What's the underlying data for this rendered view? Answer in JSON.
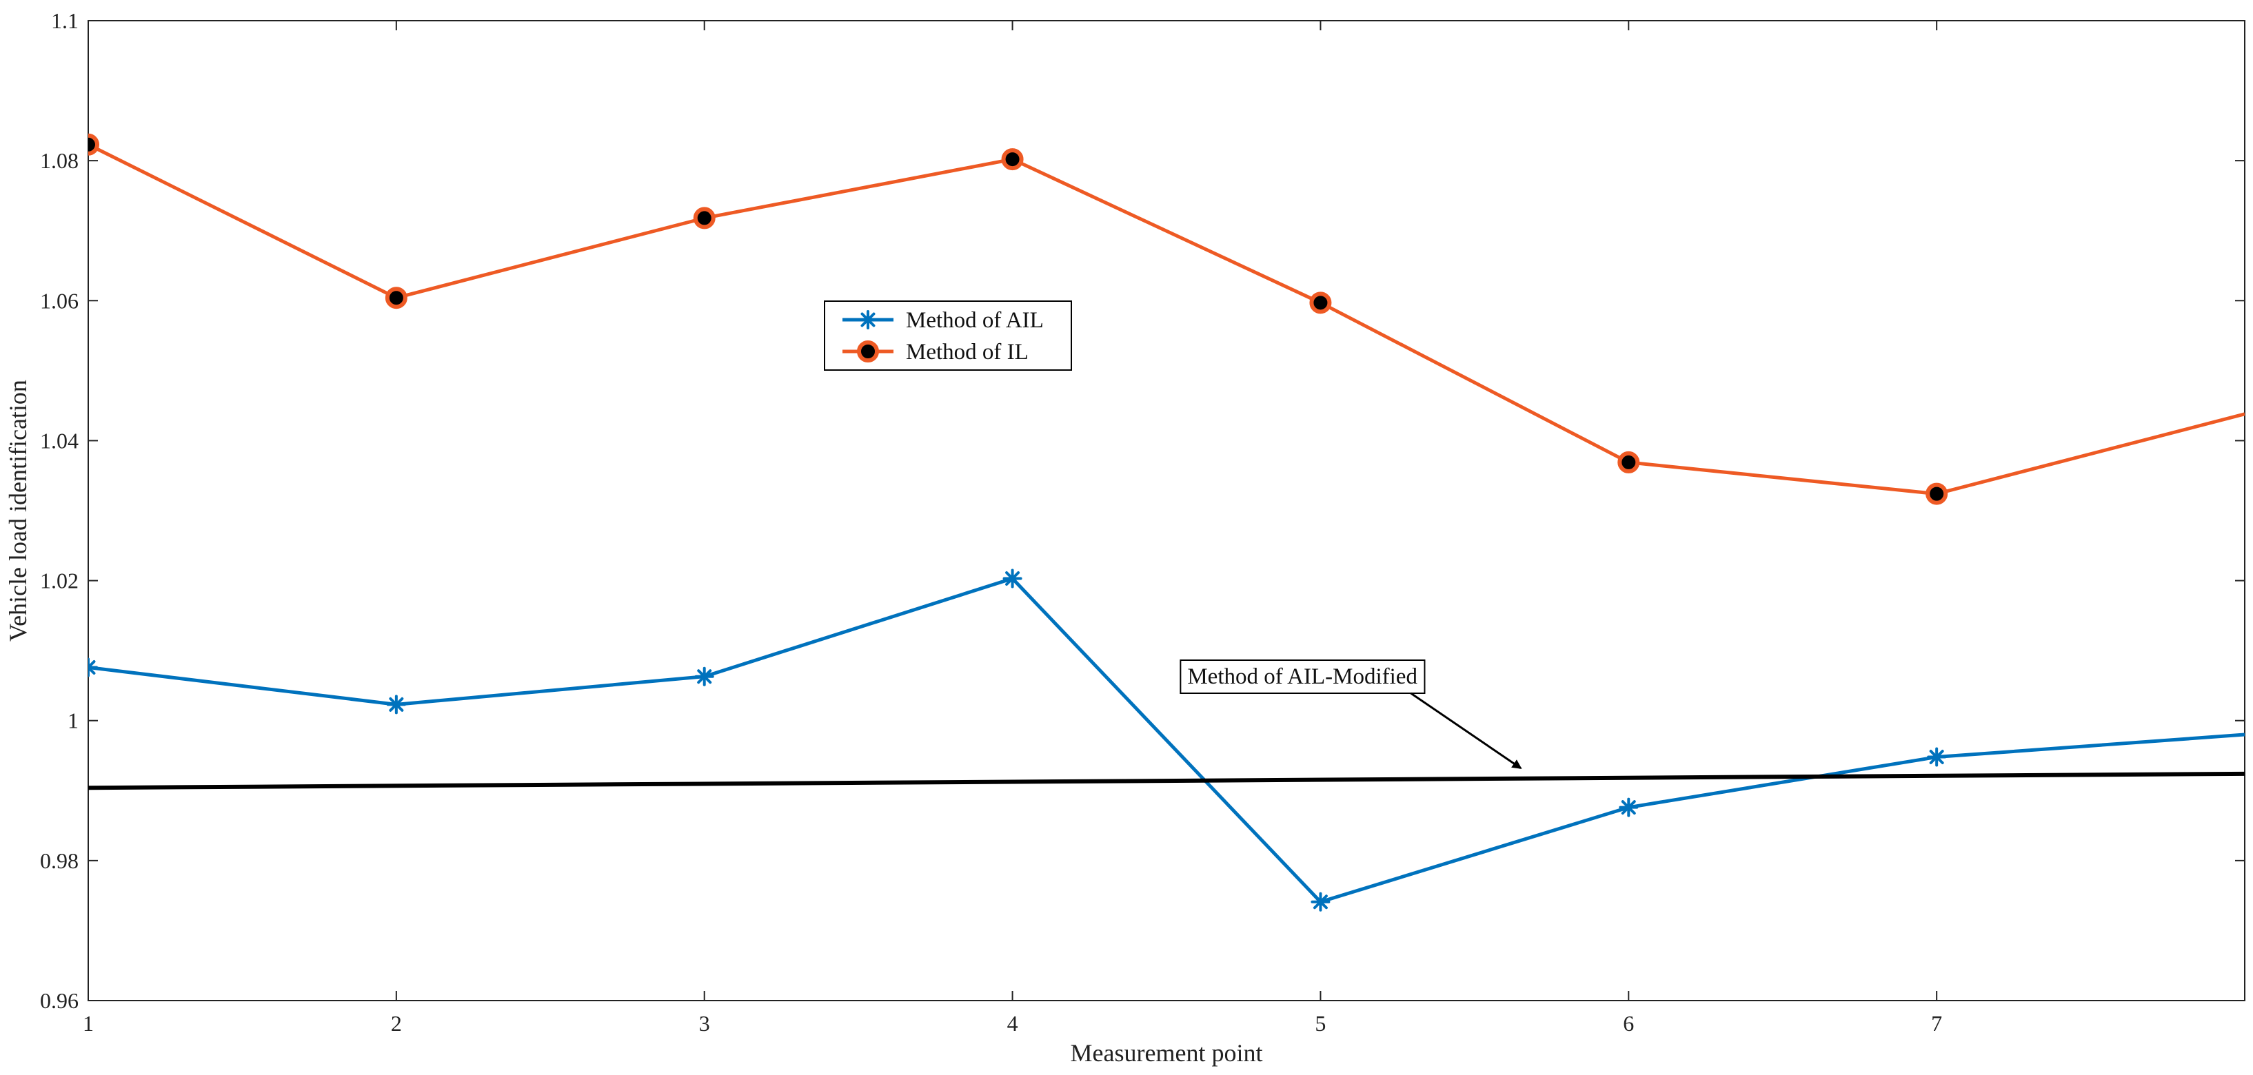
{
  "chart_data": {
    "type": "line",
    "title": "",
    "xlabel": "Measurement point",
    "ylabel": "Vehicle load identification",
    "xlim": [
      1,
      8
    ],
    "ylim": [
      0.96,
      1.1
    ],
    "x_ticks": [
      1,
      2,
      3,
      4,
      5,
      6,
      7
    ],
    "x_tick_labels": [
      "1",
      "2",
      "3",
      "4",
      "5",
      "6",
      "7"
    ],
    "y_ticks": [
      0.96,
      0.98,
      1.0,
      1.02,
      1.04,
      1.06,
      1.08,
      1.1
    ],
    "y_tick_labels": [
      "0.96",
      "0.98",
      "1",
      "1.02",
      "1.04",
      "1.06",
      "1.08",
      "1.1"
    ],
    "grid": false,
    "legend_position": "upper-center",
    "series": [
      {
        "name": "Method of AIL",
        "color": "#0072BD",
        "marker": "asterisk",
        "x": [
          1,
          2,
          3,
          4,
          5,
          6,
          7,
          8
        ],
        "y": [
          1.0076,
          1.0023,
          1.0063,
          1.0203,
          0.9741,
          0.9876,
          0.9948,
          0.998
        ]
      },
      {
        "name": "Method of IL",
        "color": "#EE5A24",
        "marker": "filled-circle",
        "marker_fill": "#000000",
        "x": [
          1,
          2,
          3,
          4,
          5,
          6,
          7,
          8
        ],
        "y": [
          1.0823,
          1.0604,
          1.0718,
          1.0802,
          1.0597,
          1.0369,
          1.0324,
          1.0438
        ]
      },
      {
        "name": "Method of AIL-Modified",
        "color": "#000000",
        "marker": "none",
        "x": [
          1,
          8
        ],
        "y": [
          0.9904,
          0.9924
        ]
      }
    ],
    "annotation": {
      "text": "Method of AIL-Modified",
      "points_to": {
        "x": 5.65,
        "y": 0.9932
      },
      "box_anchor": {
        "x": 4.55,
        "y": 1.0045
      }
    }
  }
}
